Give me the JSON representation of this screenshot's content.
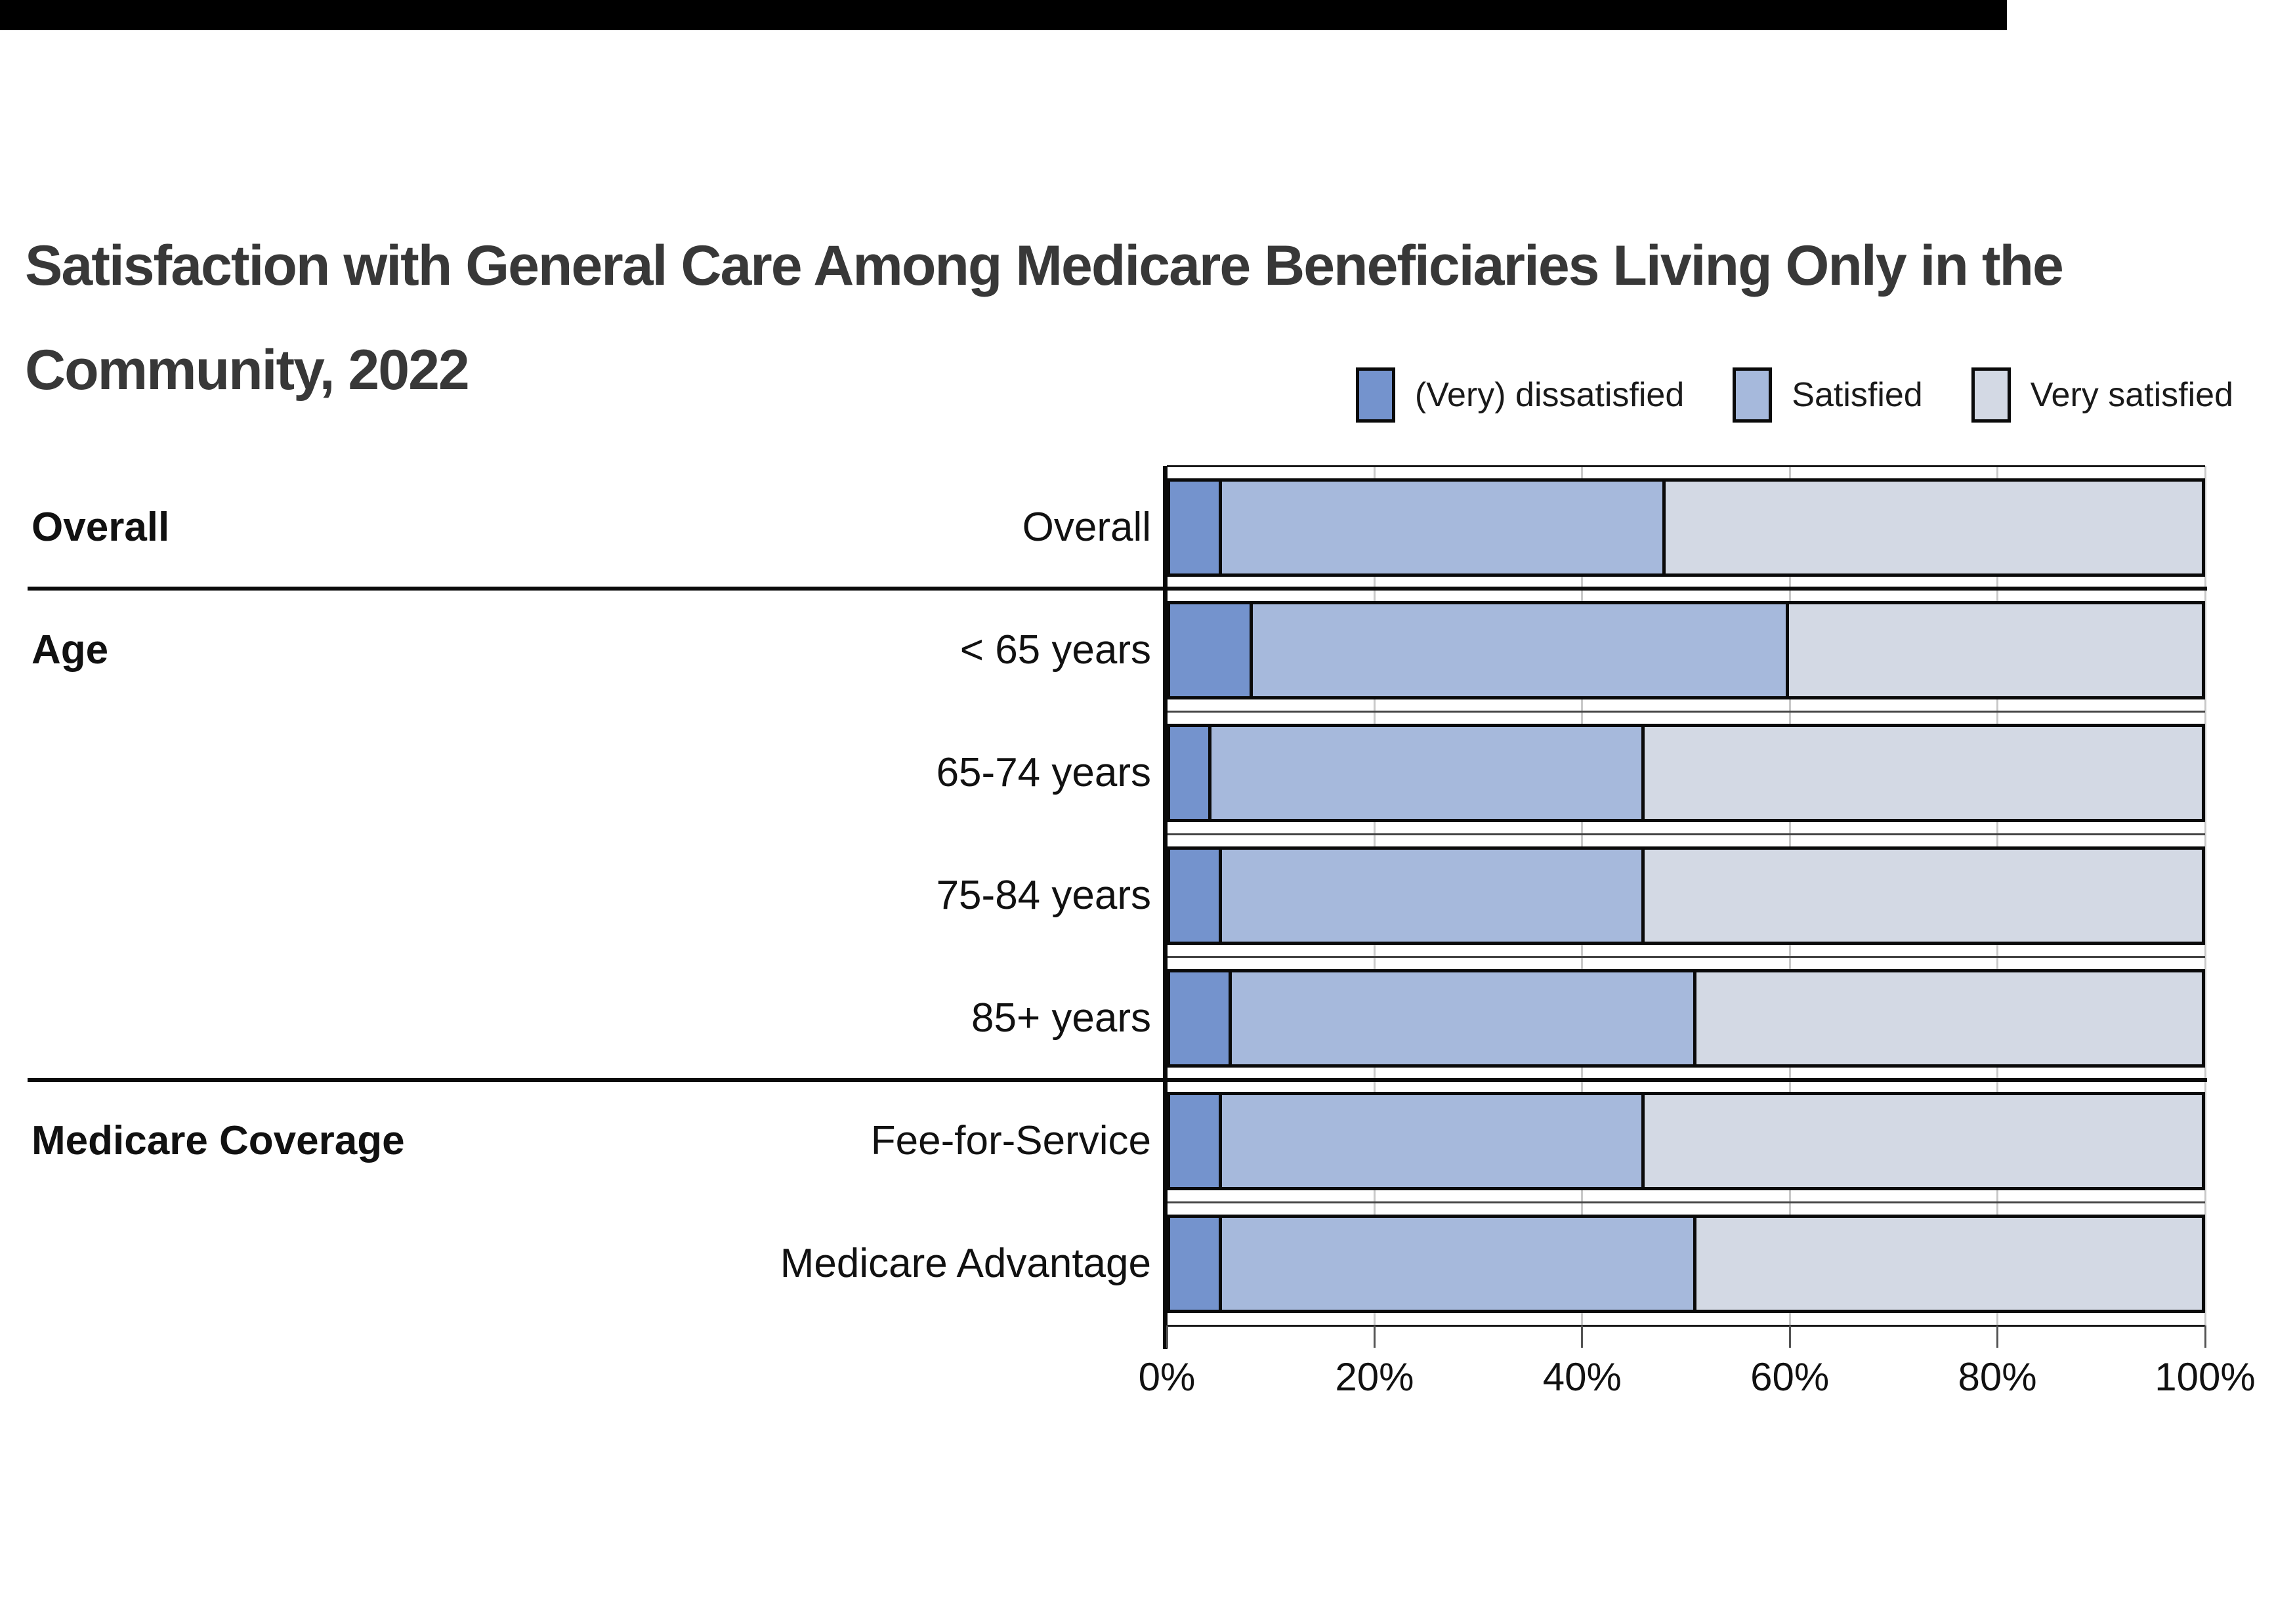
{
  "title": "Satisfaction with General Care Among Medicare Beneficiaries Living Only in the\nCommunity, 2022",
  "legend": [
    {
      "label": "(Very) dissatisfied",
      "color": "#7493CD"
    },
    {
      "label": "Satisfied",
      "color": "#A6B9DC"
    },
    {
      "label": "Very satisfied",
      "color": "#D3D9E4"
    }
  ],
  "chart_data": {
    "type": "bar",
    "orientation": "horizontal",
    "stacked": true,
    "unit": "percent",
    "xlim": [
      0,
      100
    ],
    "x_ticks": [
      "0%",
      "20%",
      "40%",
      "60%",
      "80%",
      "100%"
    ],
    "grid": "vertical-light",
    "legend_position": "top-right",
    "series_names": [
      "(Very) dissatisfied",
      "Satisfied",
      "Very satisfied"
    ],
    "colors": [
      "#7493CD",
      "#A6B9DC",
      "#D3D9E4"
    ],
    "groups": [
      {
        "label": "Overall",
        "row_count": 1
      },
      {
        "label": "Age",
        "row_count": 4
      },
      {
        "label": "Medicare Coverage",
        "row_count": 2
      }
    ],
    "rows": [
      {
        "label": "Overall",
        "group": "Overall",
        "values": [
          5,
          43,
          52
        ]
      },
      {
        "label": "< 65 years",
        "group": "Age",
        "values": [
          8,
          52,
          40
        ]
      },
      {
        "label": "65-74 years",
        "group": "Age",
        "values": [
          4,
          42,
          54
        ]
      },
      {
        "label": "75-84 years",
        "group": "Age",
        "values": [
          5,
          41,
          54
        ]
      },
      {
        "label": "85+ years",
        "group": "Age",
        "values": [
          6,
          45,
          49
        ]
      },
      {
        "label": "Fee-for-Service",
        "group": "Medicare Coverage",
        "values": [
          5,
          41,
          54
        ]
      },
      {
        "label": "Medicare Advantage",
        "group": "Medicare Coverage",
        "values": [
          5,
          46,
          49
        ]
      }
    ]
  }
}
